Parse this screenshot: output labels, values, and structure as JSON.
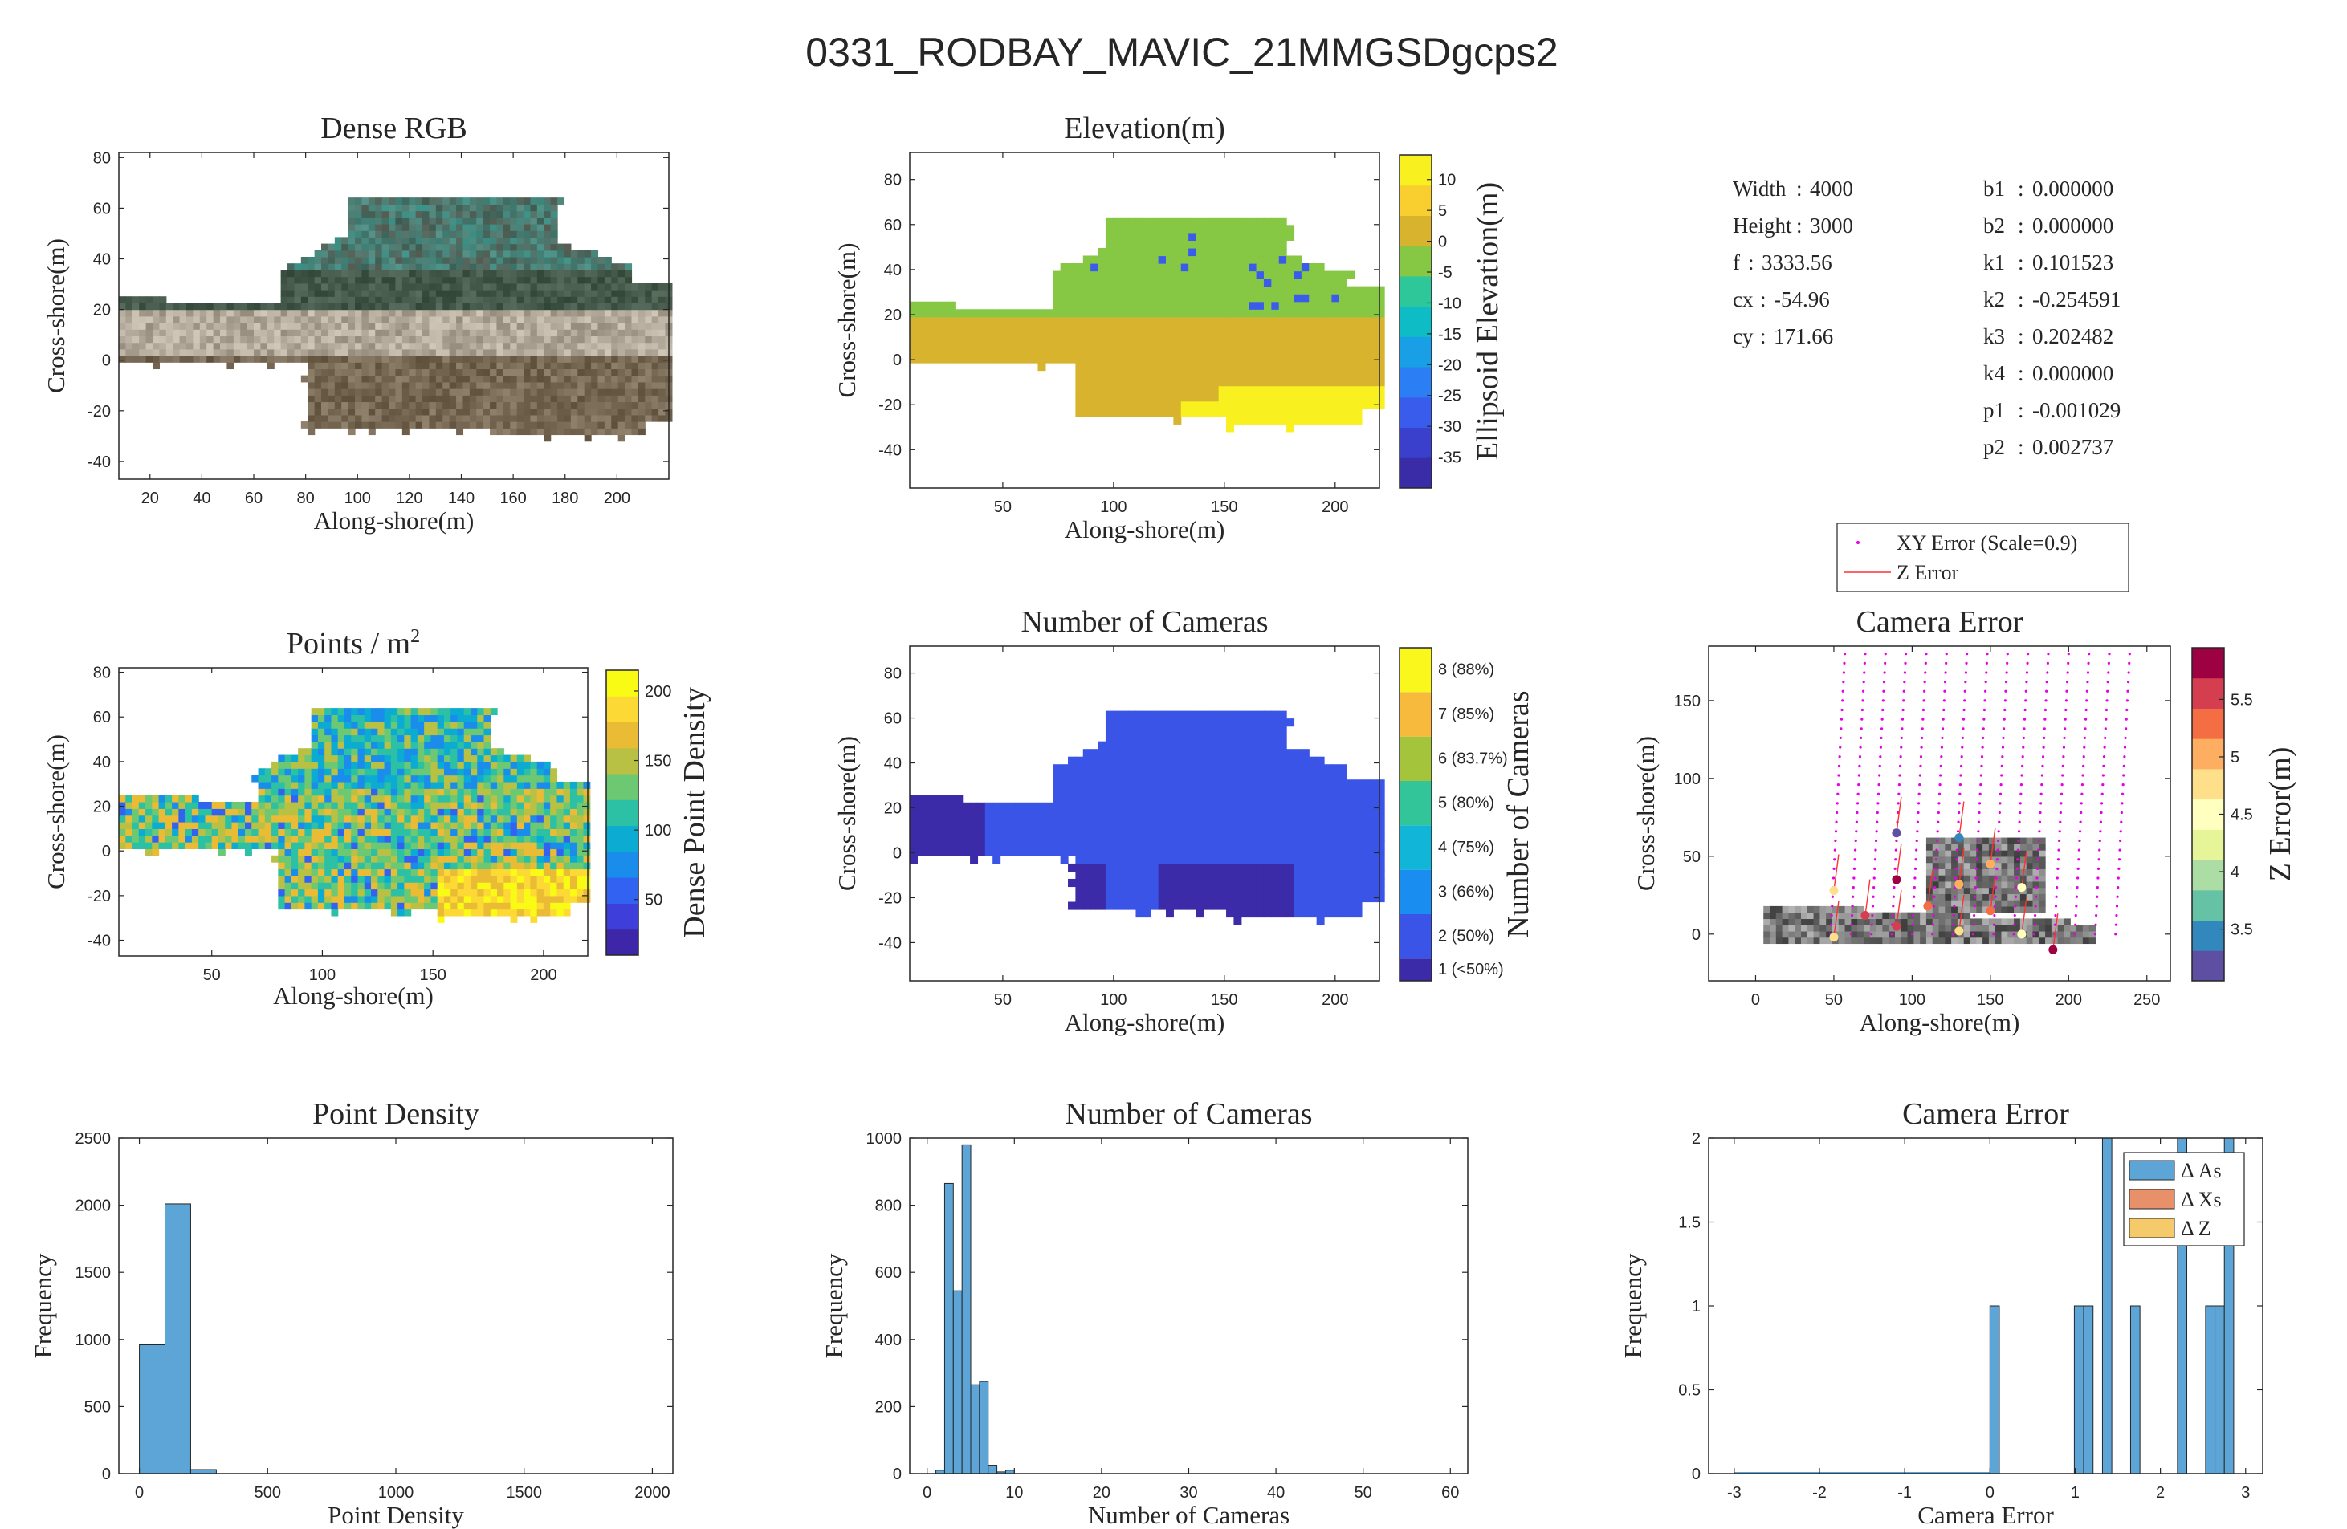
{
  "figure_title": "0331_RODBAY_MAVIC_21MMGSDgcps2",
  "camera_params": {
    "left": [
      {
        "key": "Width",
        "value": "4000"
      },
      {
        "key": "Height",
        "value": "3000"
      },
      {
        "key": "f",
        "value": "3333.56"
      },
      {
        "key": "cx",
        "value": "-54.96"
      },
      {
        "key": "cy",
        "value": "171.66"
      }
    ],
    "right": [
      {
        "key": "b1",
        "value": "0.000000"
      },
      {
        "key": "b2",
        "value": "0.000000"
      },
      {
        "key": "k1",
        "value": "0.101523"
      },
      {
        "key": "k2",
        "value": "-0.254591"
      },
      {
        "key": "k3",
        "value": "0.202482"
      },
      {
        "key": "k4",
        "value": "0.000000"
      },
      {
        "key": "p1",
        "value": "-0.001029"
      },
      {
        "key": "p2",
        "value": "0.002737"
      }
    ]
  },
  "chart_data": [
    {
      "id": "dense_rgb",
      "type": "heatmap",
      "title": "Dense RGB",
      "xlabel": "Along-shore(m)",
      "ylabel": "Cross-shore(m)",
      "xlim": [
        8,
        220
      ],
      "ylim": [
        -47,
        82
      ],
      "xticks": [
        20,
        40,
        60,
        80,
        100,
        120,
        140,
        160,
        180,
        200
      ],
      "yticks": [
        -40,
        -20,
        0,
        20,
        40,
        60,
        80
      ]
    },
    {
      "id": "elevation",
      "type": "heatmap",
      "title": "Elevation(m)",
      "xlabel": "Along-shore(m)",
      "ylabel": "Cross-shore(m)",
      "xlim": [
        8,
        220
      ],
      "ylim": [
        -57,
        92
      ],
      "xticks": [
        50,
        100,
        150,
        200
      ],
      "yticks": [
        -40,
        -20,
        0,
        20,
        40,
        60,
        80
      ],
      "colorbar": {
        "label": "Ellipsoid Elevation(m)",
        "range": [
          -40,
          14
        ],
        "ticks": [
          10,
          5,
          0,
          -5,
          -10,
          -15,
          -20,
          -25,
          -30,
          -35
        ],
        "colors": [
          "#3a2ba6",
          "#3b40cc",
          "#3a5cec",
          "#2b7ef3",
          "#189fe5",
          "#0ebcc6",
          "#2ec79a",
          "#86c744",
          "#d8b32e",
          "#f9cf30",
          "#f9f020"
        ]
      }
    },
    {
      "id": "points_per_m2",
      "type": "heatmap",
      "title": "Points / m",
      "title_superscript": "2",
      "xlabel": "Along-shore(m)",
      "ylabel": "Cross-shore(m)",
      "xlim": [
        8,
        220
      ],
      "ylim": [
        -47,
        82
      ],
      "xticks": [
        50,
        100,
        150,
        200
      ],
      "yticks": [
        -40,
        -20,
        0,
        20,
        40,
        60,
        80
      ],
      "colorbar": {
        "label": "Dense Point Density",
        "range": [
          10,
          215
        ],
        "ticks": [
          200,
          150,
          100,
          50
        ],
        "colors": [
          "#3d26a8",
          "#3e3edb",
          "#3262f2",
          "#1a8ceb",
          "#0cacd2",
          "#2cc0a5",
          "#6cc873",
          "#b8c143",
          "#eabb34",
          "#fcd935",
          "#f9fb15"
        ]
      }
    },
    {
      "id": "number_of_cameras_map",
      "type": "heatmap",
      "title": "Number of Cameras",
      "xlabel": "Along-shore(m)",
      "ylabel": "Cross-shore(m)",
      "xlim": [
        8,
        220
      ],
      "ylim": [
        -57,
        92
      ],
      "xticks": [
        50,
        100,
        150,
        200
      ],
      "yticks": [
        -40,
        -20,
        0,
        20,
        40,
        60,
        80
      ],
      "colorbar": {
        "label": "Number of Cameras",
        "categories": [
          "1 (<50%)",
          "2 (50%)",
          "3 (66%)",
          "4 (75%)",
          "5 (80%)",
          "6 (83.7%)",
          "7 (85%)",
          "8 (88%)"
        ],
        "bounds": [
          1,
          1.5,
          2.5,
          3.5,
          4.5,
          5.5,
          6.5,
          7.5,
          8.5
        ],
        "colors": [
          "#3b2ba8",
          "#3b54e8",
          "#1a8ef0",
          "#11b5d7",
          "#32c59a",
          "#a4c43c",
          "#f8ba3d",
          "#f9f71c"
        ]
      }
    },
    {
      "id": "camera_error_map",
      "type": "scatter",
      "title": "Camera Error",
      "xlabel": "Along-shore(m)",
      "ylabel": "Cross-shore(m)",
      "xlim": [
        -30,
        265
      ],
      "ylim": [
        -30,
        185
      ],
      "xticks": [
        0,
        50,
        100,
        150,
        200,
        250
      ],
      "yticks": [
        0,
        50,
        100,
        150
      ],
      "legend": [
        "XY Error (Scale=0.9)",
        "Z Error"
      ],
      "legend_position": "top",
      "cameras": [
        {
          "x": 50,
          "y": 28,
          "z": 4.7
        },
        {
          "x": 50,
          "y": -2,
          "z": 4.8
        },
        {
          "x": 70,
          "y": 12,
          "z": 5.6
        },
        {
          "x": 90,
          "y": 65,
          "z": 3.1
        },
        {
          "x": 90,
          "y": 35,
          "z": 5.9
        },
        {
          "x": 90,
          "y": 5,
          "z": 5.5
        },
        {
          "x": 110,
          "y": 18,
          "z": 5.2
        },
        {
          "x": 130,
          "y": 62,
          "z": 3.4
        },
        {
          "x": 130,
          "y": 32,
          "z": 4.9
        },
        {
          "x": 130,
          "y": 2,
          "z": 4.7
        },
        {
          "x": 150,
          "y": 45,
          "z": 5.0
        },
        {
          "x": 150,
          "y": 15,
          "z": 5.4
        },
        {
          "x": 170,
          "y": 30,
          "z": 4.4
        },
        {
          "x": 170,
          "y": 0,
          "z": 4.4
        },
        {
          "x": 190,
          "y": -10,
          "z": 5.9
        }
      ],
      "colorbar": {
        "label": "Z Error(m)",
        "range": [
          3.05,
          5.95
        ],
        "ticks": [
          5.5,
          5,
          4.5,
          4,
          3.5
        ],
        "colors": [
          "#5e4fa2",
          "#3288bd",
          "#66c2a5",
          "#abdda4",
          "#e6f598",
          "#ffffbf",
          "#fee08b",
          "#fdae61",
          "#f46d43",
          "#d53e4f",
          "#9e0142"
        ]
      }
    },
    {
      "id": "hist_point_density",
      "type": "bar",
      "title": "Point Density",
      "xlabel": "Point Density",
      "ylabel": "Frequency",
      "xlim": [
        -80,
        2080
      ],
      "ylim": [
        0,
        2500
      ],
      "xticks": [
        0,
        500,
        1000,
        1500,
        2000
      ],
      "yticks": [
        0,
        500,
        1000,
        1500,
        2000,
        2500
      ],
      "bins": [
        {
          "x0": 0,
          "x1": 100,
          "value": 960
        },
        {
          "x0": 100,
          "x1": 200,
          "value": 2010
        },
        {
          "x0": 200,
          "x1": 300,
          "value": 30
        }
      ]
    },
    {
      "id": "hist_number_of_cameras",
      "type": "bar",
      "title": "Number of Cameras",
      "xlabel": "Number of Cameras",
      "ylabel": "Frequency",
      "xlim": [
        -2,
        62
      ],
      "ylim": [
        0,
        1000
      ],
      "xticks": [
        0,
        10,
        20,
        30,
        40,
        50,
        60
      ],
      "yticks": [
        0,
        200,
        400,
        600,
        800,
        1000
      ],
      "bins": [
        {
          "x0": 1,
          "x1": 2,
          "value": 10
        },
        {
          "x0": 2,
          "x1": 3,
          "value": 865
        },
        {
          "x0": 3,
          "x1": 4,
          "value": 545
        },
        {
          "x0": 4,
          "x1": 5,
          "value": 980
        },
        {
          "x0": 5,
          "x1": 6,
          "value": 265
        },
        {
          "x0": 6,
          "x1": 7,
          "value": 275
        },
        {
          "x0": 7,
          "x1": 8,
          "value": 25
        },
        {
          "x0": 8,
          "x1": 9,
          "value": 5
        },
        {
          "x0": 9,
          "x1": 10,
          "value": 10
        }
      ]
    },
    {
      "id": "hist_camera_error",
      "type": "bar",
      "title": "Camera Error",
      "xlabel": "Camera Error",
      "ylabel": "Frequency",
      "xlim": [
        -3.3,
        3.2
      ],
      "ylim": [
        0,
        2
      ],
      "xticks": [
        -3,
        -2,
        -1,
        0,
        1,
        2,
        3
      ],
      "yticks": [
        0,
        0.5,
        1,
        1.5,
        2
      ],
      "legend": [
        "Δ As",
        "Δ Xs",
        "Δ Z"
      ],
      "legend_colors": [
        "#5da5d6",
        "#e8906a",
        "#f4ca6b"
      ],
      "legend_position": "top-right",
      "bins": [
        {
          "x0": 0,
          "x1": 0.11,
          "value": 1
        },
        {
          "x0": 0.99,
          "x1": 1.1,
          "value": 1
        },
        {
          "x0": 1.1,
          "x1": 1.21,
          "value": 1
        },
        {
          "x0": 1.32,
          "x1": 1.43,
          "value": 2
        },
        {
          "x0": 1.65,
          "x1": 1.76,
          "value": 1
        },
        {
          "x0": 2.2,
          "x1": 2.31,
          "value": 2
        },
        {
          "x0": 2.53,
          "x1": 2.64,
          "value": 1
        },
        {
          "x0": 2.64,
          "x1": 2.75,
          "value": 1
        },
        {
          "x0": 2.75,
          "x1": 2.86,
          "value": 2
        }
      ]
    }
  ]
}
